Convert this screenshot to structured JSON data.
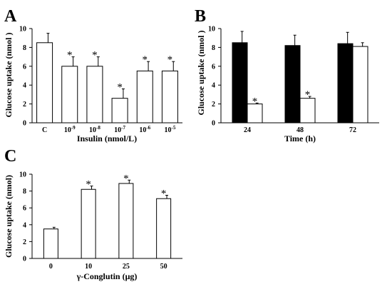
{
  "figure": {
    "colors": {
      "bar_white": "#ffffff",
      "bar_black": "#000000",
      "stroke": "#000000",
      "background": "#ffffff"
    }
  },
  "chart_data": [
    {
      "panel": "A",
      "type": "bar",
      "ylabel": "Glucose uptake (nmol )",
      "xlabel": "Insulin (nmol/L)",
      "ylim": [
        0,
        10
      ],
      "yticks": [
        0,
        2,
        4,
        6,
        8,
        10
      ],
      "categories": [
        {
          "base": "C",
          "exp": ""
        },
        {
          "base": "10",
          "exp": "-9"
        },
        {
          "base": "10",
          "exp": "-8"
        },
        {
          "base": "10",
          "exp": "-7"
        },
        {
          "base": "10",
          "exp": "-6"
        },
        {
          "base": "10",
          "exp": "-5"
        }
      ],
      "series": [
        {
          "color": "#ffffff",
          "values": [
            8.5,
            6.0,
            6.0,
            2.6,
            5.5,
            5.5
          ],
          "errors": [
            1.0,
            1.0,
            1.0,
            1.0,
            1.0,
            1.0
          ],
          "markers": [
            "",
            "*",
            "*",
            "*",
            "*",
            "*"
          ]
        }
      ],
      "grid": false
    },
    {
      "panel": "B",
      "type": "bar",
      "ylabel": "Glucose uptake (nmol )",
      "xlabel": "Time (h)",
      "ylim": [
        0,
        10
      ],
      "yticks": [
        0,
        2,
        4,
        6,
        8,
        10
      ],
      "categories": [
        {
          "base": "24",
          "exp": ""
        },
        {
          "base": "48",
          "exp": ""
        },
        {
          "base": "72",
          "exp": ""
        }
      ],
      "series": [
        {
          "color": "#000000",
          "values": [
            8.5,
            8.2,
            8.4
          ],
          "errors": [
            1.2,
            1.1,
            1.2
          ],
          "markers": [
            "",
            "",
            ""
          ]
        },
        {
          "color": "#ffffff",
          "values": [
            2.0,
            2.6,
            8.1
          ],
          "errors": [
            0.1,
            0.2,
            0.4
          ],
          "markers": [
            "*",
            "*",
            ""
          ]
        }
      ],
      "grid": false
    },
    {
      "panel": "C",
      "type": "bar",
      "ylabel": "Glucose uptake (nmol)",
      "xlabel": "γ-Conglutin (μg)",
      "ylim": [
        0,
        10
      ],
      "yticks": [
        0,
        2,
        4,
        6,
        8,
        10
      ],
      "categories": [
        {
          "base": "0",
          "exp": ""
        },
        {
          "base": "10",
          "exp": ""
        },
        {
          "base": "25",
          "exp": ""
        },
        {
          "base": "50",
          "exp": ""
        }
      ],
      "series": [
        {
          "color": "#ffffff",
          "values": [
            3.5,
            8.2,
            8.9,
            7.1
          ],
          "errors": [
            0.2,
            0.4,
            0.4,
            0.4
          ],
          "markers": [
            "",
            "*",
            "*",
            "*"
          ]
        }
      ],
      "grid": false
    }
  ]
}
